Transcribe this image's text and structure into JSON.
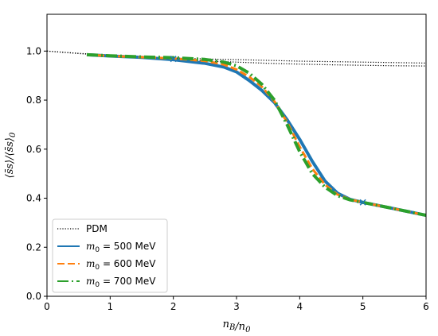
{
  "chart_data": {
    "type": "line",
    "xlabel": "n_B/n_0",
    "ylabel": "⟨s̄s⟩/⟨s̄s⟩_0",
    "xlim": [
      0,
      6
    ],
    "ylim": [
      0.0,
      1.15
    ],
    "xticks": [
      0,
      1,
      2,
      3,
      4,
      5,
      6
    ],
    "yticks": [
      0.0,
      0.2,
      0.4,
      0.6,
      0.8,
      1.0
    ],
    "xtick_labels": [
      "0",
      "1",
      "2",
      "3",
      "4",
      "5",
      "6"
    ],
    "ytick_labels": [
      "0.0",
      "0.2",
      "0.4",
      "0.6",
      "0.8",
      "1.0"
    ],
    "grid": false,
    "legend_position": "lower-left",
    "series": [
      {
        "name": "PDM",
        "style": "dotted",
        "color": "#000000",
        "x": [
          0,
          0.5,
          1.0,
          1.5,
          2.0,
          2.5,
          3.0,
          3.5,
          4.0,
          4.5,
          5.0,
          5.5,
          6.0
        ],
        "y": [
          1.0,
          0.991,
          0.983,
          0.977,
          0.972,
          0.968,
          0.965,
          0.962,
          0.959,
          0.957,
          0.955,
          0.953,
          0.951
        ]
      },
      {
        "name": "PDM",
        "style": "dotted",
        "color": "#000000",
        "x": [
          0,
          0.5,
          1.0,
          1.5,
          2.0,
          2.5,
          3.0,
          3.5,
          4.0,
          4.5,
          5.0,
          5.5,
          6.0
        ],
        "y": [
          1.0,
          0.99,
          0.981,
          0.973,
          0.966,
          0.96,
          0.955,
          0.95,
          0.947,
          0.944,
          0.942,
          0.94,
          0.939
        ]
      },
      {
        "name": "m_0 = 500 MeV",
        "style": "solid",
        "color": "#1f77b4",
        "x": [
          0.63,
          1.0,
          1.5,
          2.0,
          2.5,
          2.8,
          3.0,
          3.2,
          3.4,
          3.6,
          3.8,
          4.0,
          4.2,
          4.4,
          4.6,
          4.8,
          5.0,
          5.5,
          6.0
        ],
        "y": [
          0.985,
          0.98,
          0.974,
          0.965,
          0.95,
          0.935,
          0.915,
          0.88,
          0.84,
          0.79,
          0.72,
          0.64,
          0.55,
          0.47,
          0.42,
          0.395,
          0.383,
          0.357,
          0.33
        ]
      },
      {
        "name": "m_0 = 600 MeV",
        "style": "dashed",
        "color": "#ff7f0e",
        "x": [
          0.63,
          1.0,
          1.5,
          2.0,
          2.5,
          2.8,
          3.0,
          3.2,
          3.4,
          3.6,
          3.8,
          4.0,
          4.2,
          4.4,
          4.6,
          4.8,
          5.0,
          5.5,
          6.0
        ],
        "y": [
          0.985,
          0.98,
          0.975,
          0.97,
          0.96,
          0.945,
          0.925,
          0.895,
          0.855,
          0.795,
          0.71,
          0.61,
          0.52,
          0.455,
          0.415,
          0.395,
          0.383,
          0.357,
          0.33
        ]
      },
      {
        "name": "m_0 = 700 MeV",
        "style": "dashdot",
        "color": "#2ca02c",
        "x": [
          0.63,
          1.0,
          1.5,
          2.0,
          2.5,
          2.8,
          3.0,
          3.2,
          3.4,
          3.6,
          3.8,
          4.0,
          4.2,
          4.4,
          4.6,
          4.8,
          5.0,
          5.5,
          6.0
        ],
        "y": [
          0.985,
          0.981,
          0.976,
          0.973,
          0.966,
          0.955,
          0.94,
          0.91,
          0.865,
          0.8,
          0.7,
          0.59,
          0.5,
          0.445,
          0.41,
          0.393,
          0.383,
          0.357,
          0.33
        ]
      }
    ],
    "markers": [
      {
        "x": 2.0,
        "y": 0.968,
        "symbol": "x",
        "color": "#1f77b4"
      },
      {
        "x": 5.0,
        "y": 0.383,
        "symbol": "x",
        "color": "#1f77b4"
      }
    ],
    "legend": [
      {
        "label_prefix": "PDM",
        "label_math": "",
        "label_suffix": "",
        "style": "dotted",
        "color": "#000000"
      },
      {
        "label_prefix": "m",
        "label_math": "0",
        "label_suffix": " = 500 MeV",
        "style": "solid",
        "color": "#1f77b4"
      },
      {
        "label_prefix": "m",
        "label_math": "0",
        "label_suffix": " = 600 MeV",
        "style": "dashed",
        "color": "#ff7f0e"
      },
      {
        "label_prefix": "m",
        "label_math": "0",
        "label_suffix": " = 700 MeV",
        "style": "dashdot",
        "color": "#2ca02c"
      }
    ]
  }
}
